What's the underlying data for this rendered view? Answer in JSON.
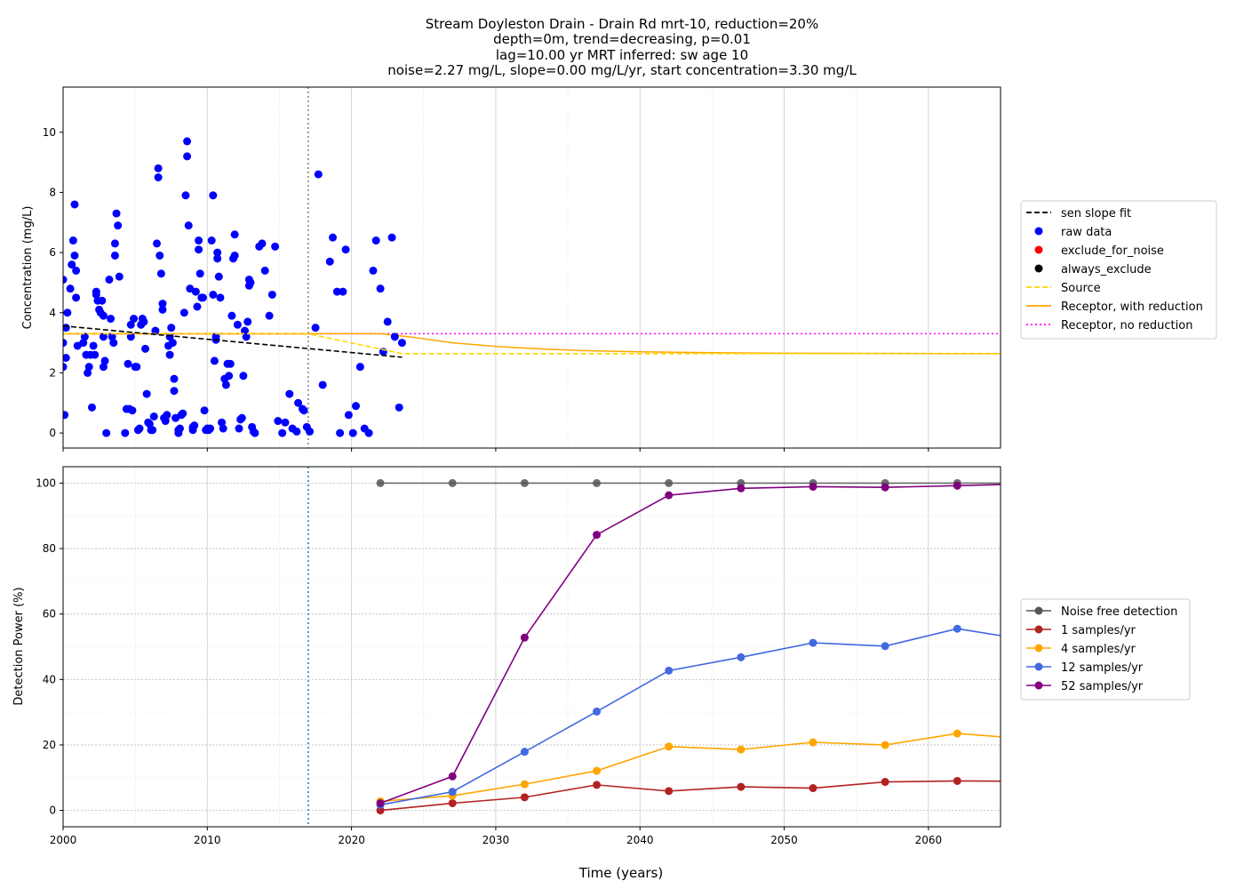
{
  "figure": {
    "title_lines": [
      "Stream Doyleston Drain - Drain Rd mrt-10, reduction=20%",
      "depth=0m, trend=decreasing, p=0.01",
      "lag=10.00 yr MRT inferred: sw age 10",
      "noise=2.27 mg/L, slope=0.00 mg/L/yr, start concentration=3.30 mg/L"
    ],
    "xlabel": "Time (years)"
  },
  "chart_data": [
    {
      "type": "scatter",
      "ylabel": "Concentration (mg/L)",
      "xlim": [
        2000,
        2065
      ],
      "ylim": [
        -0.5,
        11.5
      ],
      "xticks": [
        2000,
        2010,
        2020,
        2030,
        2040,
        2050,
        2060
      ],
      "yticks": [
        0,
        2,
        4,
        6,
        8,
        10
      ],
      "grid": "x-only",
      "vline_x": 2017,
      "legend_position": "right",
      "legend": [
        {
          "label": "sen slope fit",
          "style": "dashed",
          "color": "#000000"
        },
        {
          "label": "raw data",
          "style": "marker",
          "color": "#0000ff"
        },
        {
          "label": "exclude_for_noise",
          "style": "marker",
          "color": "#ff0000"
        },
        {
          "label": "always_exclude",
          "style": "marker",
          "color": "#000000"
        },
        {
          "label": "Source",
          "style": "dashed",
          "color": "#ffd700"
        },
        {
          "label": "Receptor, with reduction",
          "style": "solid",
          "color": "#ffa500"
        },
        {
          "label": "Receptor, no reduction",
          "style": "dotted",
          "color": "#ff00ff"
        }
      ],
      "series": [
        {
          "name": "raw data",
          "color": "#0000ff",
          "points": [
            [
              2000.0,
              5.1
            ],
            [
              2000.0,
              3.0
            ],
            [
              2000.0,
              2.2
            ],
            [
              2000.1,
              0.6
            ],
            [
              2000.2,
              3.5
            ],
            [
              2000.2,
              2.5
            ],
            [
              2000.3,
              4.0
            ],
            [
              2000.5,
              4.8
            ],
            [
              2000.6,
              5.6
            ],
            [
              2000.7,
              6.4
            ],
            [
              2000.8,
              7.6
            ],
            [
              2000.8,
              5.9
            ],
            [
              2000.9,
              5.4
            ],
            [
              2000.9,
              4.5
            ],
            [
              2001.0,
              2.9
            ],
            [
              2001.4,
              3.0
            ],
            [
              2001.5,
              3.2
            ],
            [
              2001.6,
              2.6
            ],
            [
              2001.7,
              2.0
            ],
            [
              2001.8,
              2.2
            ],
            [
              2001.9,
              2.6
            ],
            [
              2002.0,
              0.85
            ],
            [
              2002.1,
              2.9
            ],
            [
              2002.2,
              2.6
            ],
            [
              2002.3,
              4.7
            ],
            [
              2002.3,
              4.6
            ],
            [
              2002.4,
              4.4
            ],
            [
              2002.5,
              4.1
            ],
            [
              2002.6,
              4.0
            ],
            [
              2002.7,
              4.4
            ],
            [
              2002.8,
              3.9
            ],
            [
              2002.8,
              3.2
            ],
            [
              2002.8,
              2.2
            ],
            [
              2002.9,
              2.4
            ],
            [
              2003.0,
              0.0
            ],
            [
              2003.2,
              5.1
            ],
            [
              2003.3,
              3.8
            ],
            [
              2003.4,
              3.2
            ],
            [
              2003.5,
              3.0
            ],
            [
              2003.6,
              5.9
            ],
            [
              2003.6,
              6.3
            ],
            [
              2003.7,
              7.3
            ],
            [
              2003.8,
              6.9
            ],
            [
              2003.9,
              5.2
            ],
            [
              2004.3,
              0.0
            ],
            [
              2004.4,
              0.8
            ],
            [
              2004.5,
              2.3
            ],
            [
              2004.6,
              0.8
            ],
            [
              2004.7,
              3.6
            ],
            [
              2004.7,
              3.2
            ],
            [
              2004.8,
              0.75
            ],
            [
              2004.9,
              3.8
            ],
            [
              2005.0,
              2.2
            ],
            [
              2005.1,
              2.2
            ],
            [
              2005.2,
              0.1
            ],
            [
              2005.3,
              0.15
            ],
            [
              2005.4,
              3.6
            ],
            [
              2005.5,
              3.8
            ],
            [
              2005.6,
              3.7
            ],
            [
              2005.7,
              2.8
            ],
            [
              2005.8,
              1.3
            ],
            [
              2005.9,
              0.35
            ],
            [
              2006.0,
              0.3
            ],
            [
              2006.1,
              0.1
            ],
            [
              2006.2,
              0.1
            ],
            [
              2006.3,
              0.55
            ],
            [
              2006.4,
              3.4
            ],
            [
              2006.5,
              6.3
            ],
            [
              2006.6,
              8.8
            ],
            [
              2006.6,
              8.5
            ],
            [
              2006.7,
              5.9
            ],
            [
              2006.8,
              5.3
            ],
            [
              2006.9,
              4.3
            ],
            [
              2006.9,
              4.1
            ],
            [
              2007.0,
              0.5
            ],
            [
              2007.1,
              0.4
            ],
            [
              2007.2,
              0.6
            ],
            [
              2007.3,
              2.9
            ],
            [
              2007.4,
              2.6
            ],
            [
              2007.4,
              3.2
            ],
            [
              2007.5,
              3.5
            ],
            [
              2007.6,
              3.0
            ],
            [
              2007.7,
              1.8
            ],
            [
              2007.7,
              1.4
            ],
            [
              2007.8,
              0.5
            ],
            [
              2008.0,
              0.0
            ],
            [
              2008.0,
              0.1
            ],
            [
              2008.1,
              0.15
            ],
            [
              2008.2,
              0.6
            ],
            [
              2008.3,
              0.65
            ],
            [
              2008.4,
              4.0
            ],
            [
              2008.5,
              7.9
            ],
            [
              2008.6,
              9.7
            ],
            [
              2008.6,
              9.2
            ],
            [
              2008.7,
              6.9
            ],
            [
              2008.8,
              4.8
            ],
            [
              2009.0,
              0.2
            ],
            [
              2009.0,
              0.1
            ],
            [
              2009.1,
              0.25
            ],
            [
              2009.2,
              4.7
            ],
            [
              2009.3,
              4.2
            ],
            [
              2009.4,
              6.1
            ],
            [
              2009.4,
              6.4
            ],
            [
              2009.5,
              5.3
            ],
            [
              2009.6,
              4.5
            ],
            [
              2009.7,
              4.5
            ],
            [
              2009.8,
              0.75
            ],
            [
              2009.9,
              0.1
            ],
            [
              2010.0,
              0.15
            ],
            [
              2010.1,
              0.1
            ],
            [
              2010.2,
              0.15
            ],
            [
              2010.3,
              6.4
            ],
            [
              2010.4,
              7.9
            ],
            [
              2010.4,
              4.6
            ],
            [
              2010.5,
              2.4
            ],
            [
              2010.6,
              3.2
            ],
            [
              2010.6,
              3.1
            ],
            [
              2010.7,
              5.8
            ],
            [
              2010.7,
              6.0
            ],
            [
              2010.8,
              5.2
            ],
            [
              2010.9,
              4.5
            ],
            [
              2011.0,
              0.35
            ],
            [
              2011.1,
              0.15
            ],
            [
              2011.2,
              1.8
            ],
            [
              2011.3,
              1.6
            ],
            [
              2011.4,
              2.3
            ],
            [
              2011.5,
              1.9
            ],
            [
              2011.6,
              2.3
            ],
            [
              2011.7,
              3.9
            ],
            [
              2011.8,
              5.8
            ],
            [
              2011.9,
              6.6
            ],
            [
              2011.9,
              5.9
            ],
            [
              2012.1,
              3.6
            ],
            [
              2012.2,
              0.15
            ],
            [
              2012.3,
              0.45
            ],
            [
              2012.4,
              0.5
            ],
            [
              2012.5,
              1.9
            ],
            [
              2012.6,
              3.4
            ],
            [
              2012.7,
              3.2
            ],
            [
              2012.8,
              3.7
            ],
            [
              2012.9,
              5.1
            ],
            [
              2012.9,
              4.9
            ],
            [
              2013.0,
              5.0
            ],
            [
              2013.1,
              0.2
            ],
            [
              2013.2,
              0.05
            ],
            [
              2013.3,
              0.0
            ],
            [
              2013.6,
              6.2
            ],
            [
              2013.8,
              6.3
            ],
            [
              2014.0,
              5.4
            ],
            [
              2014.3,
              3.9
            ],
            [
              2014.5,
              4.6
            ],
            [
              2014.7,
              6.2
            ],
            [
              2014.9,
              0.4
            ],
            [
              2015.2,
              0.0
            ],
            [
              2015.4,
              0.35
            ],
            [
              2015.7,
              1.3
            ],
            [
              2015.9,
              0.15
            ],
            [
              2016.2,
              0.05
            ],
            [
              2016.3,
              1.0
            ],
            [
              2016.6,
              0.8
            ],
            [
              2016.7,
              0.75
            ],
            [
              2016.9,
              0.2
            ],
            [
              2017.1,
              0.05
            ],
            [
              2017.5,
              3.5
            ],
            [
              2017.7,
              8.6
            ],
            [
              2018.0,
              1.6
            ],
            [
              2018.5,
              5.7
            ],
            [
              2018.7,
              6.5
            ],
            [
              2019.0,
              4.7
            ],
            [
              2019.2,
              0.0
            ],
            [
              2019.4,
              4.7
            ],
            [
              2019.6,
              6.1
            ],
            [
              2019.8,
              0.6
            ],
            [
              2020.1,
              0.0
            ],
            [
              2020.3,
              0.9
            ],
            [
              2020.6,
              2.2
            ],
            [
              2020.9,
              0.15
            ],
            [
              2021.2,
              0.0
            ],
            [
              2021.5,
              5.4
            ],
            [
              2021.7,
              6.4
            ],
            [
              2022.0,
              4.8
            ],
            [
              2022.2,
              2.7
            ],
            [
              2022.5,
              3.7
            ],
            [
              2022.8,
              6.5
            ],
            [
              2023.0,
              3.2
            ],
            [
              2023.3,
              0.85
            ],
            [
              2023.5,
              3.0
            ]
          ]
        },
        {
          "name": "sen slope fit",
          "color": "#000000",
          "style": "dashed",
          "x": [
            2000.0,
            2023.5
          ],
          "y": [
            3.56,
            2.52
          ]
        },
        {
          "name": "Source",
          "color": "#ffd700",
          "style": "dashed",
          "x": [
            2000,
            2017,
            2023.5,
            2065
          ],
          "y": [
            3.3,
            3.3,
            2.64,
            2.64
          ]
        },
        {
          "name": "Receptor, with reduction",
          "color": "#ffa500",
          "style": "solid",
          "x": [
            2000,
            2017,
            2022,
            2024,
            2027,
            2030,
            2033,
            2036,
            2040,
            2045,
            2050,
            2065
          ],
          "y": [
            3.3,
            3.3,
            3.3,
            3.2,
            3.0,
            2.88,
            2.8,
            2.74,
            2.7,
            2.67,
            2.65,
            2.64
          ]
        },
        {
          "name": "Receptor, no reduction",
          "color": "#ff00ff",
          "style": "dotted",
          "x": [
            2000,
            2065
          ],
          "y": [
            3.3,
            3.3
          ]
        },
        {
          "name": "exclude_for_noise",
          "color": "#ff0000",
          "style": "solid",
          "x": [
            2000,
            2017
          ],
          "y": [
            3.3,
            3.3
          ]
        }
      ]
    },
    {
      "type": "line",
      "ylabel": "Detection Power (%)",
      "xlim": [
        2000,
        2065
      ],
      "ylim": [
        -5,
        105
      ],
      "xticks": [
        2000,
        2010,
        2020,
        2030,
        2040,
        2050,
        2060
      ],
      "yticks": [
        0,
        20,
        40,
        60,
        80,
        100
      ],
      "grid": "both-with-minor",
      "vline_x": 2017,
      "legend_position": "right",
      "x": [
        2022,
        2027,
        2032,
        2037,
        2042,
        2047,
        2052,
        2057,
        2062,
        2067
      ],
      "series": [
        {
          "name": "Noise free detection",
          "color": "#555555",
          "values": [
            100,
            100,
            100,
            100,
            100,
            100,
            100,
            100,
            100,
            100
          ]
        },
        {
          "name": "1 samples/yr",
          "color": "#b22222",
          "values": [
            0,
            2.2,
            4,
            7.8,
            5.9,
            7.2,
            6.8,
            8.7,
            9.0,
            8.9
          ]
        },
        {
          "name": "4 samples/yr",
          "color": "#ffa500",
          "values": [
            2.8,
            4.5,
            8,
            12.1,
            19.5,
            18.6,
            20.8,
            20.0,
            23.5,
            21.8
          ]
        },
        {
          "name": "12 samples/yr",
          "color": "#4169e1",
          "values": [
            1.7,
            5.7,
            17.9,
            30.2,
            42.7,
            46.8,
            51.2,
            50.2,
            55.5,
            52.0
          ]
        },
        {
          "name": "52 samples/yr",
          "color": "#800080",
          "values": [
            2.2,
            10.4,
            52.8,
            84.2,
            96.3,
            98.4,
            98.9,
            98.7,
            99.2,
            99.8
          ]
        }
      ]
    }
  ]
}
